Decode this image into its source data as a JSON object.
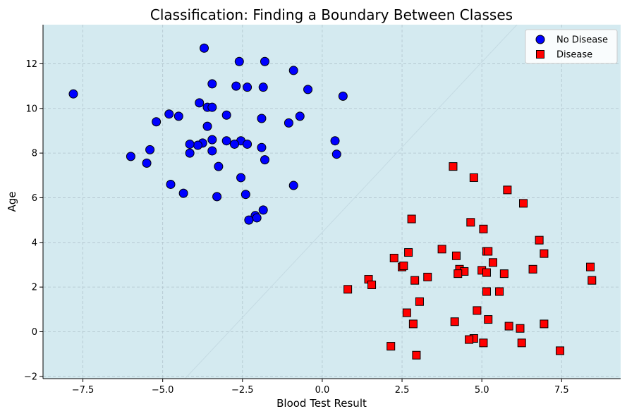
{
  "chart_data": {
    "type": "scatter",
    "title": "Classification: Finding a Boundary Between Classes",
    "xlabel": "Blood Test Result",
    "ylabel": "Age",
    "xlim": [
      -8.75,
      9.35
    ],
    "ylim": [
      -2.1,
      13.75
    ],
    "xticks": [
      -7.5,
      -5.0,
      -2.5,
      0.0,
      2.5,
      5.0,
      7.5
    ],
    "xtick_labels": [
      "−7.5",
      "−5.0",
      "−2.5",
      "0.0",
      "2.5",
      "5.0",
      "7.5"
    ],
    "yticks": [
      -2,
      0,
      2,
      4,
      6,
      8,
      10,
      12
    ],
    "ytick_labels": [
      "−2",
      "0",
      "2",
      "4",
      "6",
      "8",
      "10",
      "12"
    ],
    "grid": true,
    "background_color": "#d4eaf0",
    "legend_position": "top-right",
    "boundary_line": {
      "points": [
        [
          -4.3,
          -2.1
        ],
        [
          6.1,
          13.75
        ]
      ],
      "color": "#c5dbe3"
    },
    "series": [
      {
        "name": "No Disease",
        "marker": "circle",
        "color": "#0000ff",
        "points": [
          [
            -7.8,
            10.65
          ],
          [
            -3.7,
            12.7
          ],
          [
            -2.6,
            12.1
          ],
          [
            -1.8,
            12.1
          ],
          [
            -0.9,
            11.7
          ],
          [
            -3.45,
            11.1
          ],
          [
            -2.7,
            11.0
          ],
          [
            -2.35,
            10.95
          ],
          [
            -1.85,
            10.95
          ],
          [
            -0.45,
            10.85
          ],
          [
            0.65,
            10.55
          ],
          [
            -3.85,
            10.25
          ],
          [
            -3.6,
            10.05
          ],
          [
            -3.45,
            10.05
          ],
          [
            -4.8,
            9.75
          ],
          [
            -4.5,
            9.65
          ],
          [
            -3.0,
            9.7
          ],
          [
            -1.9,
            9.55
          ],
          [
            -0.7,
            9.65
          ],
          [
            -5.2,
            9.4
          ],
          [
            -1.05,
            9.35
          ],
          [
            -3.6,
            9.2
          ],
          [
            -3.45,
            8.6
          ],
          [
            -3.0,
            8.55
          ],
          [
            -2.55,
            8.55
          ],
          [
            -3.75,
            8.45
          ],
          [
            -3.9,
            8.35
          ],
          [
            -4.15,
            8.4
          ],
          [
            -2.75,
            8.4
          ],
          [
            -2.35,
            8.4
          ],
          [
            0.4,
            8.55
          ],
          [
            -1.9,
            8.25
          ],
          [
            -5.4,
            8.15
          ],
          [
            -3.45,
            8.1
          ],
          [
            -4.15,
            8.0
          ],
          [
            0.45,
            7.95
          ],
          [
            -6.0,
            7.85
          ],
          [
            -1.8,
            7.7
          ],
          [
            -5.5,
            7.55
          ],
          [
            -3.25,
            7.4
          ],
          [
            -2.55,
            6.9
          ],
          [
            -4.75,
            6.6
          ],
          [
            -0.9,
            6.55
          ],
          [
            -4.35,
            6.2
          ],
          [
            -2.4,
            6.15
          ],
          [
            -3.3,
            6.05
          ],
          [
            -1.85,
            5.45
          ],
          [
            -2.1,
            5.2
          ],
          [
            -2.05,
            5.1
          ],
          [
            -2.3,
            5.0
          ]
        ]
      },
      {
        "name": "Disease",
        "marker": "square",
        "color": "#ff0000",
        "points": [
          [
            4.1,
            7.4
          ],
          [
            4.75,
            6.9
          ],
          [
            5.8,
            6.35
          ],
          [
            6.3,
            5.75
          ],
          [
            2.8,
            5.05
          ],
          [
            4.65,
            4.9
          ],
          [
            5.05,
            4.6
          ],
          [
            6.8,
            4.1
          ],
          [
            3.75,
            3.7
          ],
          [
            2.7,
            3.55
          ],
          [
            5.15,
            3.6
          ],
          [
            5.2,
            3.6
          ],
          [
            6.95,
            3.5
          ],
          [
            2.25,
            3.3
          ],
          [
            4.2,
            3.4
          ],
          [
            5.35,
            3.1
          ],
          [
            2.5,
            2.9
          ],
          [
            2.55,
            2.95
          ],
          [
            4.3,
            2.8
          ],
          [
            4.45,
            2.7
          ],
          [
            5.0,
            2.75
          ],
          [
            5.15,
            2.65
          ],
          [
            6.6,
            2.8
          ],
          [
            8.4,
            2.9
          ],
          [
            4.25,
            2.6
          ],
          [
            5.7,
            2.6
          ],
          [
            3.3,
            2.45
          ],
          [
            1.45,
            2.35
          ],
          [
            2.9,
            2.3
          ],
          [
            8.45,
            2.3
          ],
          [
            1.55,
            2.1
          ],
          [
            0.8,
            1.9
          ],
          [
            5.15,
            1.8
          ],
          [
            5.55,
            1.8
          ],
          [
            3.05,
            1.35
          ],
          [
            4.85,
            0.95
          ],
          [
            2.65,
            0.85
          ],
          [
            5.2,
            0.55
          ],
          [
            4.15,
            0.45
          ],
          [
            2.85,
            0.35
          ],
          [
            5.85,
            0.25
          ],
          [
            6.95,
            0.35
          ],
          [
            6.2,
            0.15
          ],
          [
            4.75,
            -0.3
          ],
          [
            4.6,
            -0.35
          ],
          [
            5.05,
            -0.5
          ],
          [
            6.25,
            -0.5
          ],
          [
            2.15,
            -0.65
          ],
          [
            7.45,
            -0.85
          ],
          [
            2.95,
            -1.05
          ]
        ]
      }
    ]
  }
}
